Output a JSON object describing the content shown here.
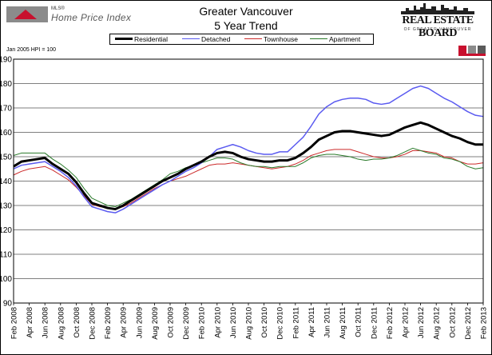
{
  "header": {
    "brand_small": "MLS®",
    "brand": "Home Price Index",
    "title_line1": "Greater Vancouver",
    "title_line2": "5 Year Trend",
    "board_name": "REAL ESTATE BOARD",
    "board_sub": "OF GREATER VANCOUVER"
  },
  "hpi_note": "Jan 2005 HPI = 100",
  "colors": {
    "residential": "#000000",
    "detached": "#5a5af0",
    "townhouse": "#cc2a2a",
    "apartment": "#2a7a2a",
    "logo_red": "#c8102e",
    "logo_gray": "#8b8b8b"
  },
  "chart_data": {
    "type": "line",
    "title": "Greater Vancouver 5 Year Trend",
    "ylim": [
      90,
      190
    ],
    "y_ticks": [
      "190",
      "180",
      "170",
      "160",
      "150",
      "140",
      "130",
      "120",
      "110",
      "100",
      "90"
    ],
    "grid": true,
    "legend_position": "top-center",
    "x": [
      "Feb 2008",
      "Mar 2008",
      "Apr 2008",
      "May 2008",
      "Jun 2008",
      "Jul 2008",
      "Aug 2008",
      "Sep 2008",
      "Oct 2008",
      "Nov 2008",
      "Dec 2008",
      "Jan 2009",
      "Feb 2009",
      "Mar 2009",
      "Apr 2009",
      "May 2009",
      "Jun 2009",
      "Jul 2009",
      "Aug 2009",
      "Sep 2009",
      "Oct 2009",
      "Nov 2009",
      "Dec 2009",
      "Jan 2010",
      "Feb 2010",
      "Mar 2010",
      "Apr 2010",
      "May 2010",
      "Jun 2010",
      "Jul 2010",
      "Aug 2010",
      "Sep 2010",
      "Oct 2010",
      "Nov 2010",
      "Dec 2010",
      "Jan 2011",
      "Feb 2011",
      "Mar 2011",
      "Apr 2011",
      "May 2011",
      "Jun 2011",
      "Jul 2011",
      "Aug 2011",
      "Sep 2011",
      "Oct 2011",
      "Nov 2011",
      "Dec 2011",
      "Jan 2012",
      "Feb 2012",
      "Mar 2012",
      "Apr 2012",
      "May 2012",
      "Jun 2012",
      "Jul 2012",
      "Aug 2012",
      "Sep 2012",
      "Oct 2012",
      "Nov 2012",
      "Dec 2012",
      "Jan 2013",
      "Feb 2013"
    ],
    "x_tick_labels": [
      "Feb 2008",
      "Apr 2008",
      "Jun 2008",
      "Aug 2008",
      "Oct 2008",
      "Dec 2008",
      "Feb 2009",
      "Apr 2009",
      "Jun 2009",
      "Aug 2009",
      "Oct 2009",
      "Dec 2009",
      "Feb 2010",
      "Apr 2010",
      "Jun 2010",
      "Aug 2010",
      "Oct 2010",
      "Dec 2010",
      "Feb 2011",
      "Apr 2011",
      "Jun 2011",
      "Aug 2011",
      "Oct 2011",
      "Dec 2011",
      "Feb 2012",
      "Apr 2012",
      "Jun 2012",
      "Aug 2012",
      "Oct 2012",
      "Dec 2012",
      "Feb 2013"
    ],
    "series": [
      {
        "name": "Residential",
        "color": "#000000",
        "width": 3,
        "values": [
          146.0,
          148.0,
          148.5,
          149.0,
          149.5,
          147.0,
          145.0,
          143.0,
          139.5,
          135.0,
          131.0,
          130.0,
          129.0,
          128.5,
          130.0,
          132.0,
          134.0,
          136.0,
          138.0,
          140.0,
          141.5,
          143.0,
          145.0,
          146.5,
          148.0,
          150.0,
          151.5,
          152.0,
          151.5,
          150.0,
          149.0,
          148.5,
          148.0,
          148.0,
          148.5,
          148.5,
          149.5,
          151.5,
          154.0,
          157.0,
          158.5,
          160.0,
          160.5,
          160.5,
          160.0,
          159.5,
          159.0,
          158.5,
          159.0,
          160.5,
          162.0,
          163.0,
          164.0,
          163.0,
          161.5,
          160.0,
          158.5,
          157.5,
          156.0,
          155.0,
          155.0
        ]
      },
      {
        "name": "Detached",
        "color": "#5a5af0",
        "width": 1.5,
        "values": [
          145.0,
          146.5,
          147.0,
          147.5,
          148.0,
          146.0,
          144.0,
          141.5,
          138.0,
          133.5,
          129.5,
          128.5,
          127.5,
          127.0,
          128.5,
          130.5,
          132.5,
          134.5,
          136.5,
          138.5,
          140.0,
          142.0,
          144.0,
          145.5,
          147.5,
          150.0,
          153.0,
          154.0,
          155.0,
          154.0,
          152.5,
          151.5,
          151.0,
          151.0,
          152.0,
          152.0,
          155.0,
          158.0,
          162.5,
          167.5,
          170.5,
          172.5,
          173.5,
          174.0,
          174.0,
          173.5,
          172.0,
          171.5,
          172.0,
          174.0,
          176.0,
          178.0,
          179.0,
          178.0,
          176.0,
          174.0,
          172.5,
          170.5,
          168.5,
          167.0,
          166.5
        ]
      },
      {
        "name": "Townhouse",
        "color": "#cc2a2a",
        "width": 1,
        "values": [
          142.5,
          144.0,
          145.0,
          145.5,
          146.0,
          144.5,
          142.5,
          140.5,
          137.5,
          134.0,
          130.5,
          129.5,
          129.0,
          128.5,
          129.5,
          131.0,
          133.0,
          135.0,
          137.0,
          138.5,
          140.0,
          141.0,
          142.0,
          143.5,
          145.0,
          146.5,
          147.0,
          147.0,
          147.5,
          147.0,
          146.5,
          146.0,
          145.5,
          145.0,
          145.5,
          146.0,
          147.0,
          148.5,
          150.5,
          151.5,
          152.5,
          153.0,
          153.0,
          153.0,
          152.0,
          151.0,
          150.0,
          149.5,
          149.5,
          150.0,
          151.0,
          152.5,
          152.5,
          152.0,
          151.5,
          150.0,
          149.5,
          148.0,
          147.0,
          147.0,
          147.5
        ]
      },
      {
        "name": "Apartment",
        "color": "#2a7a2a",
        "width": 1,
        "values": [
          150.5,
          151.5,
          151.5,
          151.5,
          151.5,
          149.0,
          147.0,
          144.5,
          141.5,
          137.0,
          133.0,
          131.5,
          130.0,
          129.5,
          131.0,
          132.5,
          134.5,
          136.5,
          138.5,
          140.5,
          143.0,
          144.0,
          145.5,
          146.5,
          147.5,
          148.5,
          149.5,
          149.5,
          149.0,
          147.5,
          146.5,
          146.0,
          146.0,
          145.5,
          146.0,
          146.0,
          146.0,
          147.5,
          149.5,
          150.5,
          151.0,
          151.0,
          150.5,
          150.0,
          149.0,
          148.5,
          149.0,
          149.0,
          149.5,
          150.5,
          152.0,
          153.5,
          152.5,
          151.5,
          151.0,
          149.5,
          149.0,
          148.0,
          146.0,
          145.0,
          145.5
        ]
      }
    ]
  }
}
